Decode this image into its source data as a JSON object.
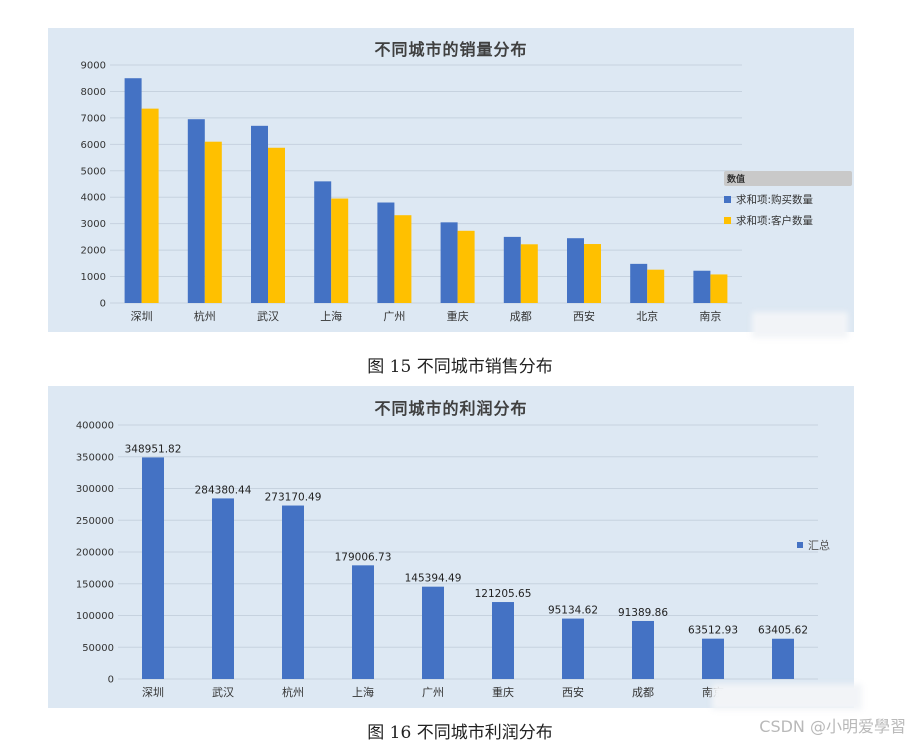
{
  "chart_data": [
    {
      "type": "bar",
      "title": "不同城市的销量分布",
      "categories": [
        "深圳",
        "杭州",
        "武汉",
        "上海",
        "广州",
        "重庆",
        "成都",
        "西安",
        "北京",
        "南京"
      ],
      "series": [
        {
          "name": "求和项:购买数量",
          "color": "#4472c4",
          "values": [
            8500,
            6950,
            6700,
            4600,
            3800,
            3050,
            2500,
            2450,
            1480,
            1220
          ]
        },
        {
          "name": "求和项:客户数量",
          "color": "#ffc000",
          "values": [
            7350,
            6100,
            5870,
            3950,
            3320,
            2730,
            2220,
            2230,
            1260,
            1080
          ]
        }
      ],
      "ylim": [
        0,
        9000
      ],
      "yticks": [
        0,
        1000,
        2000,
        3000,
        4000,
        5000,
        6000,
        7000,
        8000,
        9000
      ],
      "legend_title": "数值",
      "legend_position": "right",
      "xlabel": "",
      "ylabel": ""
    },
    {
      "type": "bar",
      "title": "不同城市的利润分布",
      "categories": [
        "深圳",
        "武汉",
        "杭州",
        "上海",
        "广州",
        "重庆",
        "西安",
        "成都",
        "南京",
        ""
      ],
      "series": [
        {
          "name": "汇总",
          "color": "#4472c4",
          "values": [
            348951.82,
            284380.44,
            273170.49,
            179006.73,
            145394.49,
            121205.65,
            95134.62,
            91389.86,
            63512.93,
            63405.62
          ]
        }
      ],
      "data_labels": [
        "348951.82",
        "284380.44",
        "273170.49",
        "179006.73",
        "145394.49",
        "121205.65",
        "95134.62",
        "91389.86",
        "63512.93",
        "63405.62"
      ],
      "ylim": [
        0,
        400000
      ],
      "yticks": [
        0,
        50000,
        100000,
        150000,
        200000,
        250000,
        300000,
        350000,
        400000
      ],
      "legend_position": "right",
      "xlabel": "",
      "ylabel": ""
    }
  ],
  "captions": {
    "fig15": "图 15  不同城市销售分布",
    "fig16": "图 16  不同城市利润分布"
  },
  "watermark": "CSDN @小明爱學習"
}
